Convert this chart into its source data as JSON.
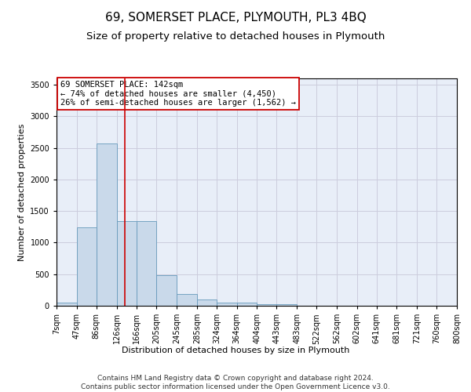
{
  "title": "69, SOMERSET PLACE, PLYMOUTH, PL3 4BQ",
  "subtitle": "Size of property relative to detached houses in Plymouth",
  "xlabel": "Distribution of detached houses by size in Plymouth",
  "ylabel": "Number of detached properties",
  "footer_line1": "Contains HM Land Registry data © Crown copyright and database right 2024.",
  "footer_line2": "Contains public sector information licensed under the Open Government Licence v3.0.",
  "bin_edges": [
    7,
    47,
    86,
    126,
    166,
    205,
    245,
    285,
    324,
    364,
    404,
    443,
    483,
    522,
    562,
    602,
    641,
    681,
    721,
    760,
    800
  ],
  "bar_heights": [
    50,
    1240,
    2570,
    1340,
    1340,
    490,
    185,
    100,
    50,
    50,
    30,
    30,
    0,
    0,
    0,
    0,
    0,
    0,
    0,
    0
  ],
  "bar_color": "#c9d9ea",
  "bar_edge_color": "#6699bb",
  "grid_color": "#ccccdd",
  "background_color": "#e8eef8",
  "property_size": 142,
  "vline_color": "#cc0000",
  "annotation_text": "69 SOMERSET PLACE: 142sqm\n← 74% of detached houses are smaller (4,450)\n26% of semi-detached houses are larger (1,562) →",
  "annotation_box_color": "#cc0000",
  "ylim": [
    0,
    3600
  ],
  "yticks": [
    0,
    500,
    1000,
    1500,
    2000,
    2500,
    3000,
    3500
  ],
  "tick_labels": [
    "7sqm",
    "47sqm",
    "86sqm",
    "126sqm",
    "166sqm",
    "205sqm",
    "245sqm",
    "285sqm",
    "324sqm",
    "364sqm",
    "404sqm",
    "443sqm",
    "483sqm",
    "522sqm",
    "562sqm",
    "602sqm",
    "641sqm",
    "681sqm",
    "721sqm",
    "760sqm",
    "800sqm"
  ],
  "title_fontsize": 11,
  "subtitle_fontsize": 9.5,
  "axis_label_fontsize": 8,
  "tick_fontsize": 7,
  "annotation_fontsize": 7.5,
  "footer_fontsize": 6.5
}
